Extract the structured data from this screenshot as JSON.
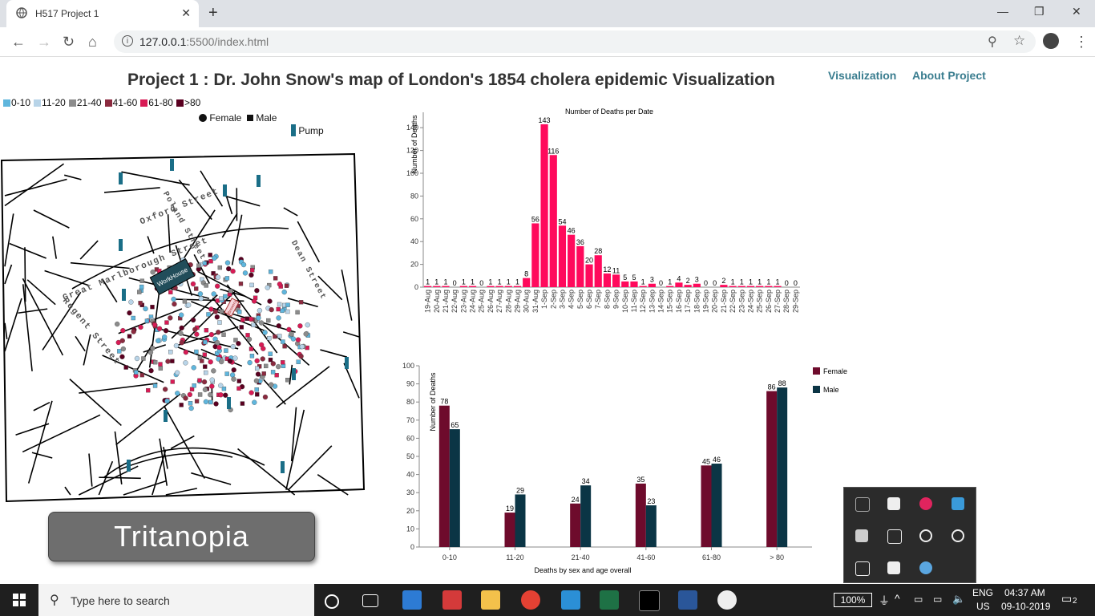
{
  "browser": {
    "tab_title": "H517 Project 1",
    "tab_close": "✕",
    "new_tab": "+",
    "url_host": "127.0.0.1",
    "url_rest": ":5500/index.html",
    "win_min": "—",
    "win_restore": "❐",
    "win_close": "✕"
  },
  "page": {
    "title": "Project 1 : Dr. John Snow's map of London's 1854 cholera epidemic Visualization",
    "nav_visualization": "Visualization",
    "nav_about": "About Project",
    "filter_button": "Tritanopia"
  },
  "legend": {
    "age_groups": [
      {
        "label": "0-10",
        "color": "#5fb6dd"
      },
      {
        "label": "11-20",
        "color": "#b8d4e8"
      },
      {
        "label": "21-40",
        "color": "#8c8c8c"
      },
      {
        "label": "41-60",
        "color": "#8b2a3f"
      },
      {
        "label": "61-80",
        "color": "#d81b55"
      },
      {
        "label": ">80",
        "color": "#5a0020"
      }
    ],
    "female": "Female",
    "male": "Male",
    "pump": "Pump",
    "pump_color": "#1a6e87"
  },
  "map": {
    "street_labels": [
      "Oxford Street",
      "Great Marlborough Street",
      "Regent Street",
      "Dean Street",
      "Poland Street"
    ],
    "workhouse": "WorkHouse",
    "brewery": "Brewery"
  },
  "chart_data": [
    {
      "type": "bar",
      "title": "Number of Deaths per Date",
      "ylabel": "Number of Deaths",
      "xlabel": "",
      "ylim": [
        0,
        150
      ],
      "yticks": [
        0,
        20,
        40,
        60,
        80,
        100,
        120,
        140
      ],
      "color": "#ff0a5c",
      "categories": [
        "19-Aug",
        "20-Aug",
        "21-Aug",
        "22-Aug",
        "23-Aug",
        "24-Aug",
        "25-Aug",
        "26-Aug",
        "27-Aug",
        "28-Aug",
        "29-Aug",
        "30-Aug",
        "31-Aug",
        "1-Sep",
        "2-Sep",
        "3-Sep",
        "4-Sep",
        "5-Sep",
        "6-Sep",
        "7-Sep",
        "8-Sep",
        "9-Sep",
        "10-Sep",
        "11-Sep",
        "12-Sep",
        "13-Sep",
        "14-Sep",
        "15-Sep",
        "16-Sep",
        "17-Sep",
        "18-Sep",
        "19-Sep",
        "20-Sep",
        "21-Sep",
        "22-Sep",
        "23-Sep",
        "24-Sep",
        "25-Sep",
        "26-Sep",
        "27-Sep",
        "28-Sep",
        "29-Sep"
      ],
      "values": [
        1,
        1,
        1,
        0,
        1,
        1,
        0,
        1,
        1,
        1,
        1,
        8,
        56,
        143,
        116,
        54,
        46,
        36,
        20,
        28,
        12,
        11,
        5,
        5,
        1,
        3,
        0,
        1,
        4,
        2,
        3,
        0,
        0,
        2,
        1,
        1,
        1,
        1,
        1,
        1,
        0,
        0
      ]
    },
    {
      "type": "bar",
      "title": "",
      "xlabel": "Deaths by sex and age overall",
      "ylabel": "Number of Deaths",
      "ylim": [
        0,
        100
      ],
      "yticks": [
        0,
        10,
        20,
        30,
        40,
        50,
        60,
        70,
        80,
        90,
        100
      ],
      "categories": [
        "0-10",
        "11-20",
        "21-40",
        "41-60",
        "61-80",
        "> 80"
      ],
      "series": [
        {
          "name": "Female",
          "color": "#6e0b2c",
          "values": [
            78,
            19,
            24,
            35,
            45,
            86
          ]
        },
        {
          "name": "Male",
          "color": "#0b3545",
          "values": [
            65,
            29,
            34,
            23,
            46,
            88
          ]
        }
      ],
      "legend": "top-right"
    }
  ],
  "taskbar": {
    "search_placeholder": "Type here to search",
    "zoom": "100%",
    "lang_top": "ENG",
    "lang_bottom": "US",
    "time": "04:37 AM",
    "date": "09-10-2019",
    "notifications": "2"
  }
}
